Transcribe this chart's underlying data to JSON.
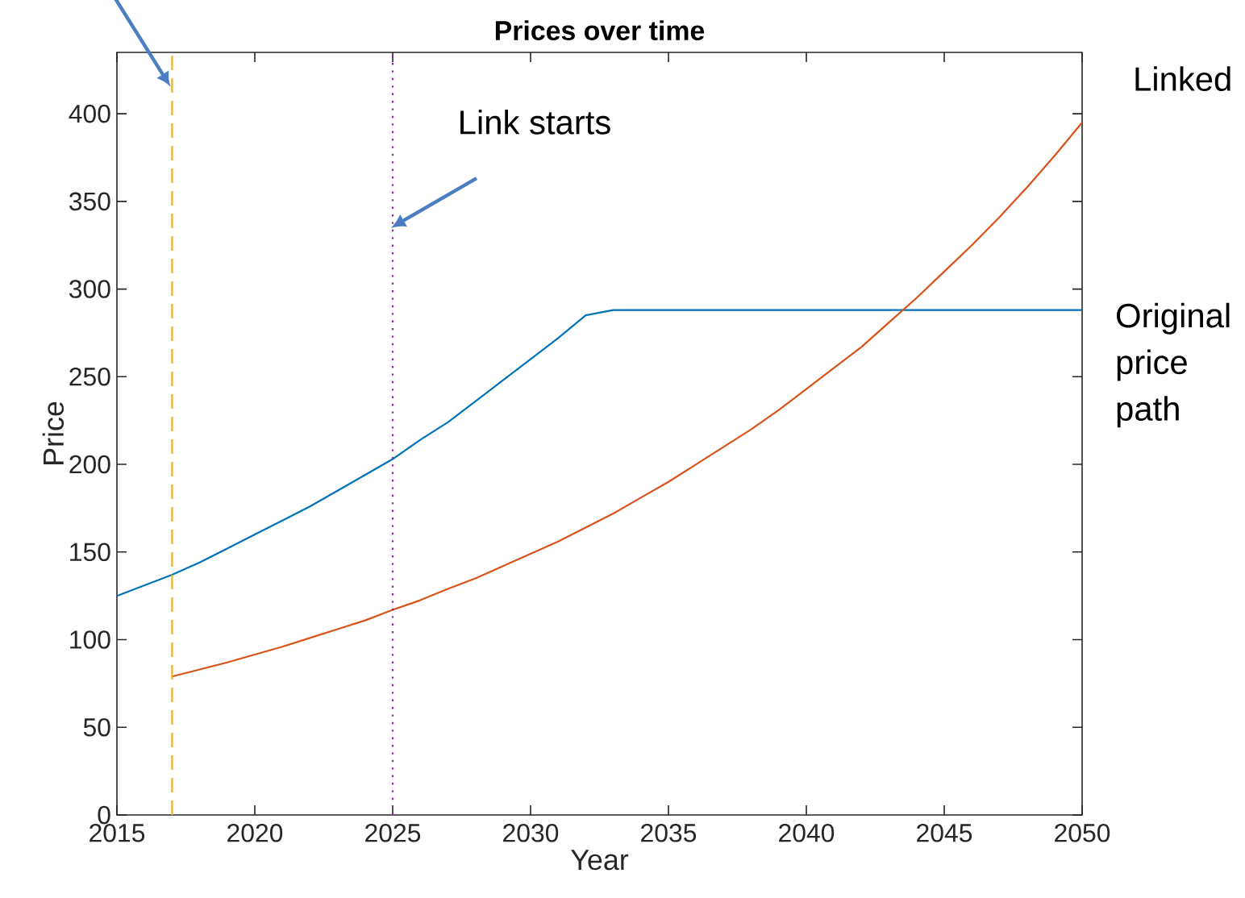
{
  "chart_data": {
    "type": "line",
    "title": "Prices over time",
    "xlabel": "Year",
    "ylabel": "Price",
    "xlim": [
      2015,
      2050
    ],
    "xticks": [
      2015,
      2020,
      2025,
      2030,
      2035,
      2040,
      2045,
      2050
    ],
    "ylim": [
      0,
      435
    ],
    "yticks": [
      0,
      50,
      100,
      150,
      200,
      250,
      300,
      350,
      400
    ],
    "grid": false,
    "marker": "none",
    "line_style": "solid",
    "series": [
      {
        "name": "Original price path",
        "color": "#0072bd",
        "x": [
          2015,
          2016,
          2017,
          2018,
          2019,
          2020,
          2021,
          2022,
          2023,
          2024,
          2025,
          2026,
          2027,
          2028,
          2029,
          2030,
          2031,
          2032,
          2033,
          2050
        ],
        "values": [
          125,
          131,
          137,
          144,
          152,
          160,
          168,
          176,
          185,
          194,
          203,
          214,
          224,
          236,
          248,
          260,
          272,
          285,
          288,
          288
        ]
      },
      {
        "name": "Linked",
        "color": "#d95319",
        "x": [
          2017,
          2018,
          2019,
          2020,
          2021,
          2022,
          2023,
          2024,
          2025,
          2026,
          2027,
          2028,
          2029,
          2030,
          2031,
          2032,
          2033,
          2034,
          2035,
          2036,
          2037,
          2038,
          2039,
          2040,
          2041,
          2042,
          2043,
          2044,
          2045,
          2046,
          2047,
          2048,
          2049,
          2050
        ],
        "values": [
          79,
          83,
          87,
          91.5,
          96,
          101,
          106,
          111,
          117,
          122.5,
          129,
          135,
          142,
          149,
          156,
          164,
          172,
          181,
          190,
          200,
          210,
          220,
          231,
          243,
          255,
          267,
          281,
          295,
          310,
          325,
          341,
          358,
          376,
          395
        ]
      }
    ],
    "ref_lines": [
      {
        "axis": "x",
        "value": 2017,
        "color": "#edb120",
        "line_style": "dashed"
      },
      {
        "axis": "x",
        "value": 2025,
        "color": "#7e2f8e",
        "line_style": "dotted",
        "label": "Link starts"
      }
    ]
  }
}
